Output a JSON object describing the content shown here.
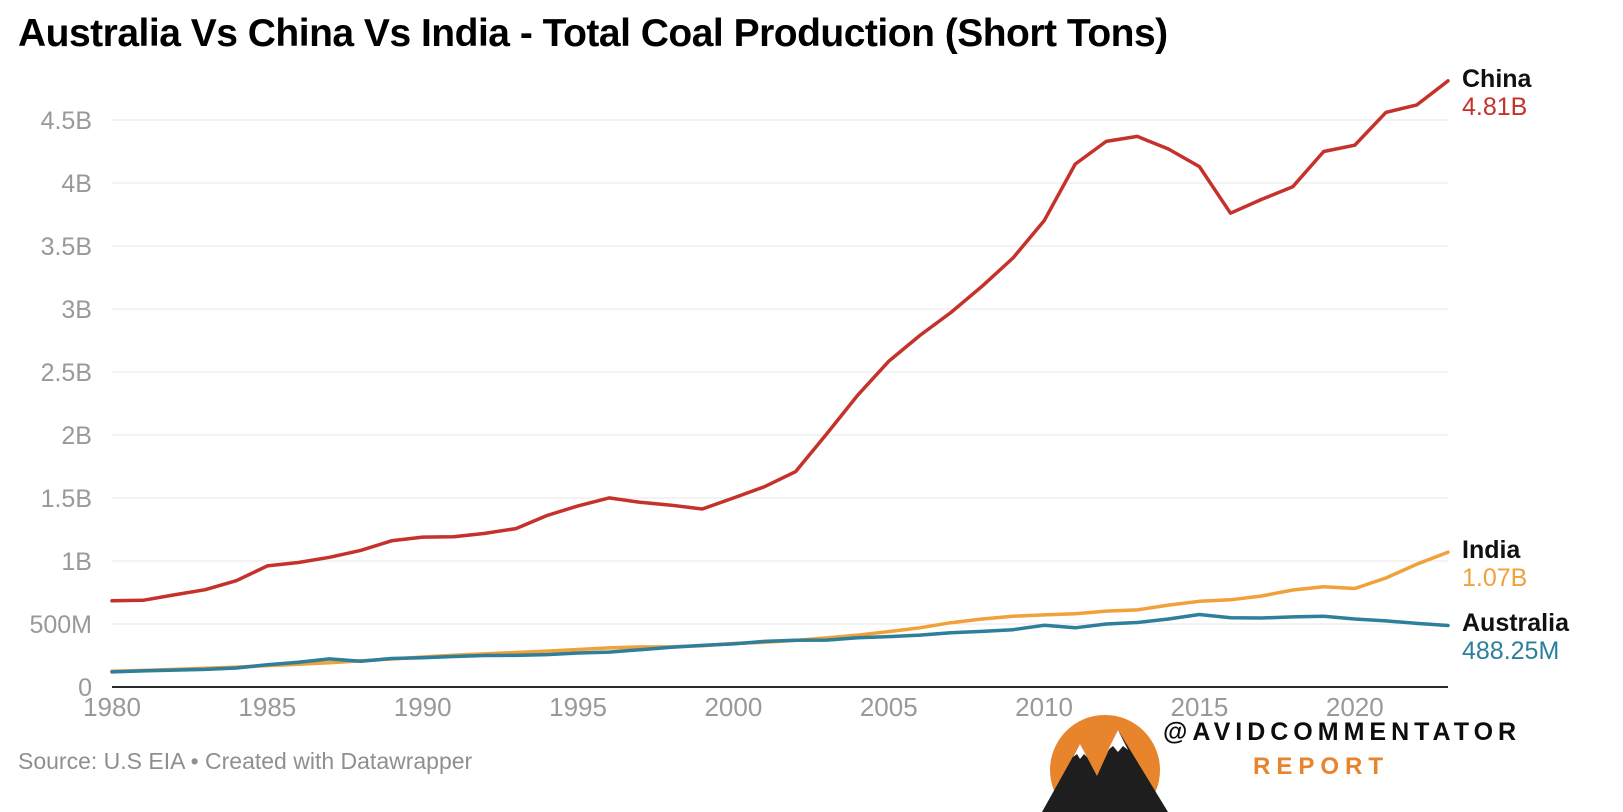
{
  "footer": {
    "source": "Source: U.S EIA • Created with Datawrapper",
    "brand_handle": "@AVIDCOMMENTATOR",
    "brand_sub": "REPORT"
  },
  "colors": {
    "china": "#c5312b",
    "india": "#f0a13a",
    "australia": "#2d7f9b",
    "grid": "#e7e7e7",
    "axis_text": "#999999",
    "baseline": "#2b2b2b",
    "brand_orange": "#e8842c",
    "mountain_dark": "#1e1e1e"
  },
  "chart_data": {
    "type": "line",
    "title": "Australia Vs China Vs India - Total Coal Production (Short Tons)",
    "xlabel": "",
    "ylabel": "",
    "unit": "millions of short tons",
    "grid": "horizontal",
    "legend_position": "right-end-labels",
    "ylim_millions": [
      0,
      4500
    ],
    "x": [
      1980,
      1981,
      1982,
      1983,
      1984,
      1985,
      1986,
      1987,
      1988,
      1989,
      1990,
      1991,
      1992,
      1993,
      1994,
      1995,
      1996,
      1997,
      1998,
      1999,
      2000,
      2001,
      2002,
      2003,
      2004,
      2005,
      2006,
      2007,
      2008,
      2009,
      2010,
      2011,
      2012,
      2013,
      2014,
      2015,
      2016,
      2017,
      2018,
      2019,
      2020,
      2021,
      2022,
      2023
    ],
    "xticks": {
      "values": [
        1980,
        1985,
        1990,
        1995,
        2000,
        2005,
        2010,
        2015,
        2020
      ],
      "labels": [
        "1980",
        "1985",
        "1990",
        "1995",
        "2000",
        "2005",
        "2010",
        "2015",
        "2020"
      ]
    },
    "yticks": {
      "values": [
        0,
        500,
        1000,
        1500,
        2000,
        2500,
        3000,
        3500,
        4000,
        4500
      ],
      "labels": [
        "0",
        "500M",
        "1B",
        "1.5B",
        "2B",
        "2.5B",
        "3B",
        "3.5B",
        "4B",
        "4.5B"
      ]
    },
    "series": [
      {
        "name": "China",
        "color_key": "china",
        "end_label": "4.81B",
        "values_millions": [
          684,
          688,
          731,
          772,
          844,
          961,
          988,
          1029,
          1084,
          1160,
          1190,
          1192,
          1219,
          1257,
          1361,
          1437,
          1501,
          1466,
          1443,
          1413,
          1500,
          1590,
          1709,
          2008,
          2316,
          2585,
          2790,
          2972,
          3180,
          3405,
          3700,
          4150,
          4330,
          4370,
          4270,
          4130,
          3760,
          3870,
          3970,
          4250,
          4300,
          4560,
          4620,
          4810
        ]
      },
      {
        "name": "India",
        "color_key": "india",
        "end_label": "1.07B",
        "values_millions": [
          125,
          132,
          140,
          149,
          158,
          170,
          181,
          193,
          207,
          222,
          238,
          252,
          263,
          274,
          285,
          298,
          310,
          318,
          320,
          327,
          345,
          355,
          370,
          390,
          412,
          440,
          470,
          510,
          540,
          562,
          572,
          582,
          602,
          612,
          650,
          680,
          692,
          722,
          770,
          795,
          782,
          865,
          975,
          1070
        ]
      },
      {
        "name": "Australia",
        "color_key": "australia",
        "end_label": "488.25M",
        "values_millions": [
          120,
          128,
          134,
          140,
          151,
          176,
          196,
          223,
          205,
          226,
          232,
          242,
          250,
          251,
          257,
          270,
          277,
          296,
          316,
          330,
          342,
          362,
          371,
          372,
          391,
          400,
          412,
          430,
          441,
          455,
          490,
          470,
          500,
          512,
          540,
          575,
          550,
          548,
          556,
          562,
          540,
          525,
          505,
          488.25
        ]
      }
    ]
  }
}
